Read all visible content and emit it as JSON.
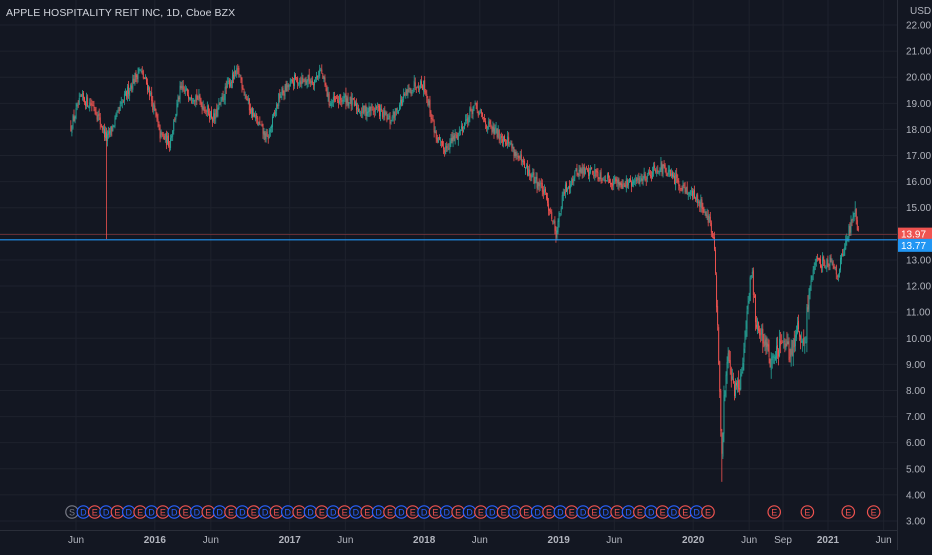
{
  "header": {
    "symbol_title": "APPLE HOSPITALITY REIT INC, 1D, Cboe BZX"
  },
  "colors": {
    "background": "#131722",
    "grid": "#1e222d",
    "text": "#b2b5be",
    "up": "#26a69a",
    "down": "#ef5350",
    "last_price_line": "#ef5350",
    "hline": "#2196f3",
    "dividend_marker": "#2962ff",
    "earnings_marker": "#ef5350",
    "split_marker": "#787b86"
  },
  "chart_data": {
    "type": "candlestick",
    "title": "APPLE HOSPITALITY REIT INC, 1D, Cboe BZX",
    "currency_label": "USD",
    "y_axis": {
      "ticks": [
        "3.00",
        "4.00",
        "5.00",
        "6.00",
        "7.00",
        "8.00",
        "9.00",
        "10.00",
        "11.00",
        "12.00",
        "13.00",
        "14.00",
        "15.00",
        "16.00",
        "17.00",
        "18.00",
        "19.00",
        "20.00",
        "21.00",
        "22.00"
      ],
      "range": [
        3.0,
        22.0
      ]
    },
    "x_axis": {
      "ticks": [
        {
          "label": "Jun",
          "date": "2015-06-01"
        },
        {
          "label": "2016",
          "date": "2016-01-01"
        },
        {
          "label": "Jun",
          "date": "2016-06-01"
        },
        {
          "label": "2017",
          "date": "2017-01-01"
        },
        {
          "label": "Jun",
          "date": "2017-06-01"
        },
        {
          "label": "2018",
          "date": "2018-01-01"
        },
        {
          "label": "Jun",
          "date": "2018-06-01"
        },
        {
          "label": "2019",
          "date": "2019-01-01"
        },
        {
          "label": "Jun",
          "date": "2019-06-01"
        },
        {
          "label": "2020",
          "date": "2020-01-01"
        },
        {
          "label": "Jun",
          "date": "2020-06-01"
        },
        {
          "label": "Sep",
          "date": "2020-09-01"
        },
        {
          "label": "2021",
          "date": "2021-01-01"
        },
        {
          "label": "Jun",
          "date": "2021-06-01"
        }
      ]
    },
    "price_path": [
      {
        "date": "2015-05-18",
        "close": 18.1
      },
      {
        "date": "2015-06-15",
        "close": 19.2
      },
      {
        "date": "2015-07-20",
        "close": 18.9
      },
      {
        "date": "2015-08-24",
        "close": 17.6
      },
      {
        "date": "2015-09-20",
        "close": 18.5
      },
      {
        "date": "2015-10-20",
        "close": 19.5
      },
      {
        "date": "2015-11-20",
        "close": 20.3
      },
      {
        "date": "2015-12-15",
        "close": 19.6
      },
      {
        "date": "2016-01-15",
        "close": 17.8
      },
      {
        "date": "2016-02-10",
        "close": 17.5
      },
      {
        "date": "2016-03-10",
        "close": 19.5
      },
      {
        "date": "2016-04-20",
        "close": 19.3
      },
      {
        "date": "2016-06-10",
        "close": 18.4
      },
      {
        "date": "2016-07-20",
        "close": 19.8
      },
      {
        "date": "2016-08-15",
        "close": 20.2
      },
      {
        "date": "2016-09-15",
        "close": 18.8
      },
      {
        "date": "2016-11-01",
        "close": 17.6
      },
      {
        "date": "2016-12-05",
        "close": 19.3
      },
      {
        "date": "2017-01-15",
        "close": 19.9
      },
      {
        "date": "2017-03-10",
        "close": 19.9
      },
      {
        "date": "2017-03-25",
        "close": 20.3
      },
      {
        "date": "2017-04-20",
        "close": 19.0
      },
      {
        "date": "2017-06-01",
        "close": 19.2
      },
      {
        "date": "2017-07-15",
        "close": 18.7
      },
      {
        "date": "2017-08-25",
        "close": 18.8
      },
      {
        "date": "2017-09-30",
        "close": 18.3
      },
      {
        "date": "2017-11-01",
        "close": 19.1
      },
      {
        "date": "2017-12-10",
        "close": 19.8
      },
      {
        "date": "2018-01-01",
        "close": 19.7
      },
      {
        "date": "2018-02-01",
        "close": 17.8
      },
      {
        "date": "2018-02-20",
        "close": 17.2
      },
      {
        "date": "2018-04-01",
        "close": 17.8
      },
      {
        "date": "2018-05-01",
        "close": 18.5
      },
      {
        "date": "2018-05-15",
        "close": 18.9
      },
      {
        "date": "2018-07-01",
        "close": 18.0
      },
      {
        "date": "2018-08-15",
        "close": 17.6
      },
      {
        "date": "2018-10-01",
        "close": 16.5
      },
      {
        "date": "2018-11-15",
        "close": 15.8
      },
      {
        "date": "2018-12-10",
        "close": 14.9
      },
      {
        "date": "2018-12-24",
        "close": 14.0
      },
      {
        "date": "2019-01-15",
        "close": 15.6
      },
      {
        "date": "2019-02-20",
        "close": 16.4
      },
      {
        "date": "2019-04-01",
        "close": 16.4
      },
      {
        "date": "2019-06-01",
        "close": 16.0
      },
      {
        "date": "2019-07-20",
        "close": 15.9
      },
      {
        "date": "2019-09-01",
        "close": 16.3
      },
      {
        "date": "2019-10-01",
        "close": 16.6
      },
      {
        "date": "2019-11-01",
        "close": 16.2
      },
      {
        "date": "2019-12-15",
        "close": 15.7
      },
      {
        "date": "2020-01-20",
        "close": 15.2
      },
      {
        "date": "2020-02-15",
        "close": 14.5
      },
      {
        "date": "2020-02-28",
        "close": 13.4
      },
      {
        "date": "2020-03-12",
        "close": 8.5
      },
      {
        "date": "2020-03-18",
        "close": 5.0
      },
      {
        "date": "2020-03-25",
        "close": 7.8
      },
      {
        "date": "2020-04-05",
        "close": 9.6
      },
      {
        "date": "2020-04-20",
        "close": 8.0
      },
      {
        "date": "2020-05-10",
        "close": 8.4
      },
      {
        "date": "2020-05-25",
        "close": 10.5
      },
      {
        "date": "2020-06-08",
        "close": 12.8
      },
      {
        "date": "2020-06-20",
        "close": 10.5
      },
      {
        "date": "2020-07-15",
        "close": 9.9
      },
      {
        "date": "2020-08-01",
        "close": 9.0
      },
      {
        "date": "2020-08-25",
        "close": 9.8
      },
      {
        "date": "2020-09-20",
        "close": 9.4
      },
      {
        "date": "2020-10-10",
        "close": 10.3
      },
      {
        "date": "2020-10-30",
        "close": 9.5
      },
      {
        "date": "2020-11-09",
        "close": 11.8
      },
      {
        "date": "2020-11-25",
        "close": 12.8
      },
      {
        "date": "2020-12-15",
        "close": 12.9
      },
      {
        "date": "2021-01-10",
        "close": 13.0
      },
      {
        "date": "2021-01-28",
        "close": 12.5
      },
      {
        "date": "2021-02-15",
        "close": 13.5
      },
      {
        "date": "2021-03-01",
        "close": 14.2
      },
      {
        "date": "2021-03-15",
        "close": 15.0
      },
      {
        "date": "2021-03-25",
        "close": 13.97
      }
    ],
    "extreme_wicks": [
      {
        "date": "2015-08-24",
        "low": 13.8
      },
      {
        "date": "2020-03-18",
        "low": 4.5
      },
      {
        "date": "2021-03-15",
        "high": 15.25
      }
    ],
    "price_labels": [
      {
        "value": 13.97,
        "label": "13.97",
        "kind": "last_price"
      },
      {
        "value": 13.77,
        "label": "13.77",
        "kind": "horizontal_line"
      }
    ],
    "events": {
      "sequence": "SDEDEDEDEDEDEDEDEDEDEDEDEDEDEDEDEDEDEDEDEDEDEDEDEDEDEDEDE",
      "late_earnings_dates": [
        "2020-08-08",
        "2020-11-06",
        "2021-02-25",
        "2021-05-05"
      ],
      "legend": {
        "S": "split",
        "D": "dividend",
        "E": "earnings"
      }
    }
  }
}
